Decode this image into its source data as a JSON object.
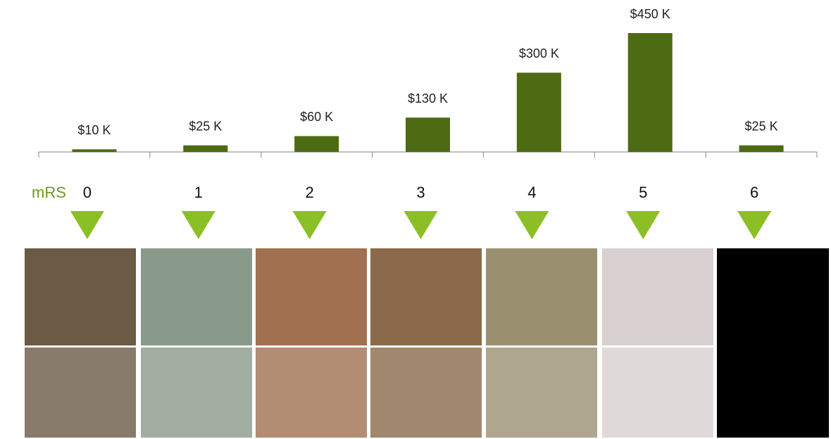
{
  "chart_data": {
    "type": "bar",
    "x_label": "mRS",
    "categories": [
      "0",
      "1",
      "2",
      "3",
      "4",
      "5",
      "6"
    ],
    "values": [
      10,
      25,
      60,
      130,
      300,
      450,
      25
    ],
    "value_labels": [
      "$10 K",
      "$25 K",
      "$60 K",
      "$130 K",
      "$300 K",
      "$450 K",
      "$25 K"
    ],
    "color": "#4d6b12"
  }
}
